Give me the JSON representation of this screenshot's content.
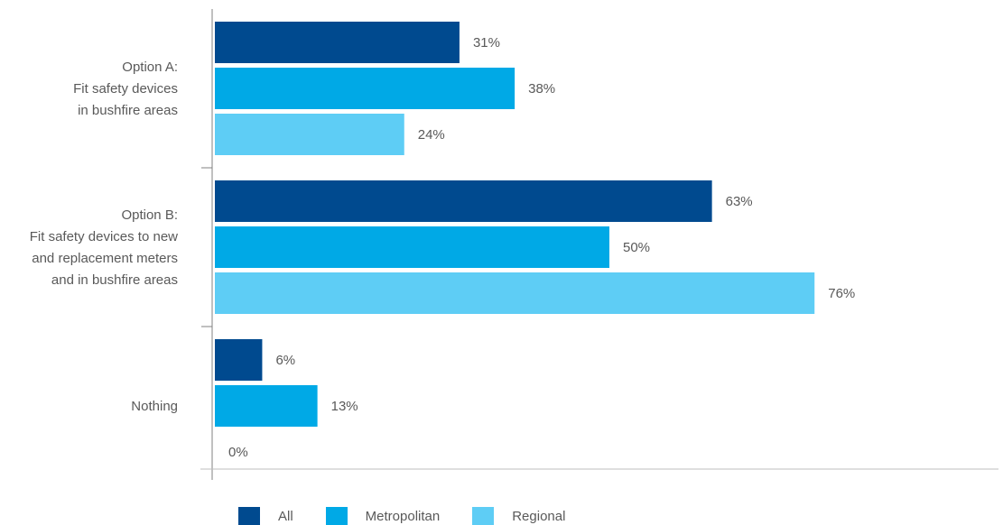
{
  "chart_data": {
    "type": "bar",
    "orientation": "horizontal",
    "categories": [
      [
        "Option A:",
        "Fit safety devices",
        "in bushfire areas"
      ],
      [
        "Option B:",
        "Fit safety devices to new",
        "and replacement meters",
        "and in bushfire areas"
      ],
      [
        "Nothing"
      ]
    ],
    "series": [
      {
        "name": "All",
        "color": "#004a8f",
        "values": [
          31,
          63,
          6
        ]
      },
      {
        "name": "Metropolitan",
        "color": "#00a9e6",
        "values": [
          38,
          50,
          13
        ]
      },
      {
        "name": "Regional",
        "color": "#5ecdf5",
        "values": [
          24,
          76,
          0
        ]
      }
    ],
    "value_suffix": "%",
    "xlim": [
      0,
      100
    ],
    "grid": false,
    "legend_position": "bottom-left"
  }
}
